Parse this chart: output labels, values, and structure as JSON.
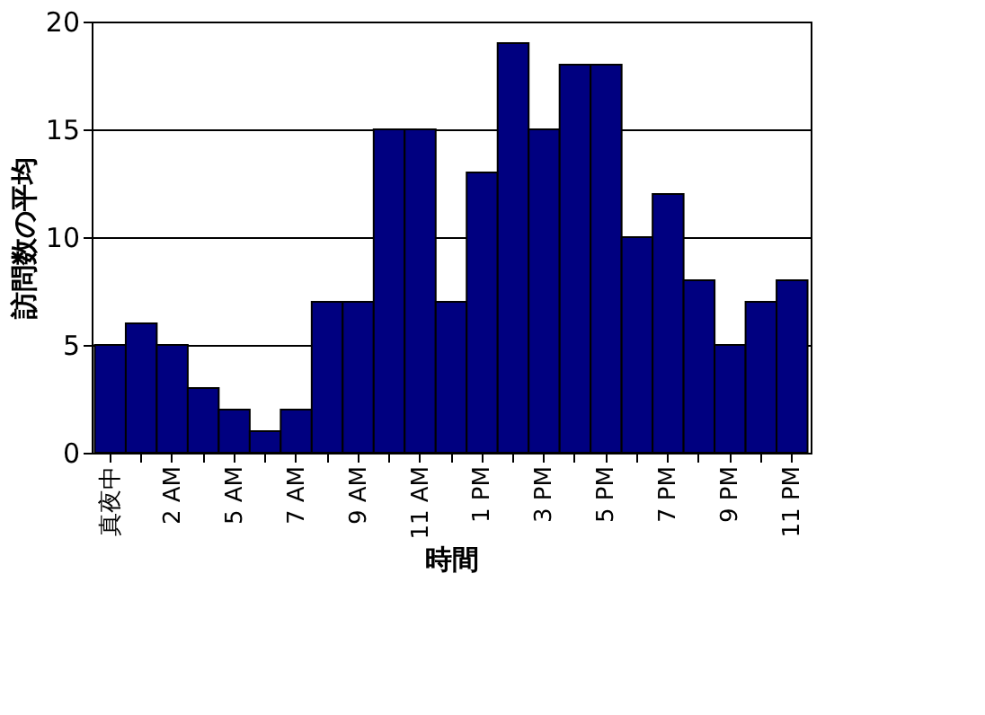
{
  "chart_data": {
    "type": "bar",
    "xlabel": "時間",
    "ylabel": "訪問数の平均",
    "categories": [
      "真夜中",
      null,
      "2 AM",
      null,
      "5 AM",
      null,
      "7 AM",
      null,
      "9 AM",
      null,
      "11 AM",
      null,
      "1 PM",
      null,
      "3 PM",
      null,
      "5 PM",
      null,
      "7 PM",
      null,
      "9 PM",
      null,
      "11 PM"
    ],
    "values": [
      5,
      6,
      5,
      3,
      2,
      1,
      2,
      7,
      7,
      15,
      15,
      7,
      13,
      19,
      15,
      18,
      18,
      10,
      12,
      8,
      5,
      7,
      8
    ],
    "color": "#000080",
    "ylim": [
      0,
      20
    ],
    "yticks": [
      0,
      5,
      10,
      15,
      20
    ],
    "grid": "y"
  }
}
